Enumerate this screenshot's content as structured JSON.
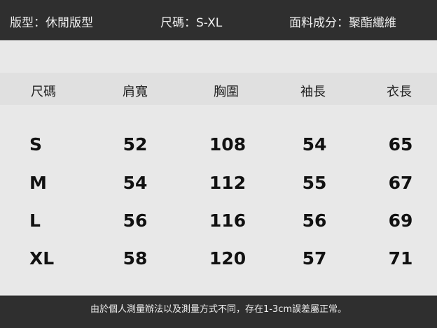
{
  "info": {
    "fit": "版型：休閒版型",
    "size_range": "尺碼：S-XL",
    "material": "面料成分：聚酯纖維"
  },
  "table": {
    "headers": [
      "尺碼",
      "肩寬",
      "胸圍",
      "袖長",
      "衣長"
    ],
    "rows": [
      [
        "S",
        "52",
        "108",
        "54",
        "65"
      ],
      [
        "M",
        "54",
        "112",
        "55",
        "67"
      ],
      [
        "L",
        "56",
        "116",
        "56",
        "69"
      ],
      [
        "XL",
        "58",
        "120",
        "57",
        "71"
      ]
    ]
  },
  "footer": "由於個人測量辦法以及測量方式不同，存在1-3cm誤差屬正常。"
}
